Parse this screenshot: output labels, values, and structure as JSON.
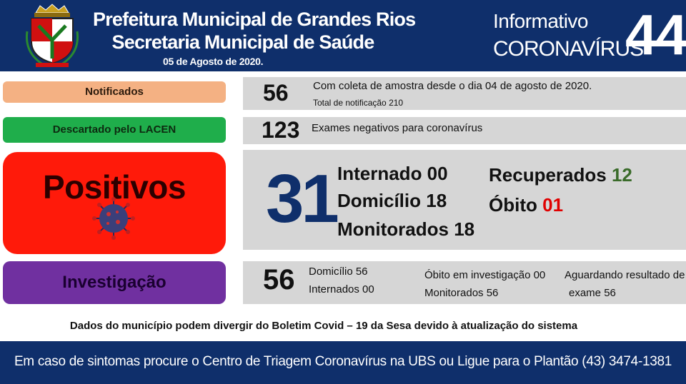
{
  "header": {
    "title_line1": "Prefeitura Municipal de Grandes Rios",
    "title_line2": "Secretaria Municipal de Saúde",
    "date": "05 de Agosto de 2020.",
    "info_label": "Informativo",
    "corona_label": "CORONAVÍRUS",
    "edition_number": "44"
  },
  "notificados": {
    "label": "Notificados",
    "value": "56",
    "text": "Com coleta de amostra desde o dia 04 de agosto de 2020.",
    "subtext": "Total de notificação 210"
  },
  "descartado": {
    "label": "Descartado pelo LACEN",
    "value": "123",
    "text": "Exames negativos para coronavírus"
  },
  "positivos": {
    "label": "Positivos",
    "value": "31",
    "internado": "Internado 00",
    "domicilio": "Domicílio 18",
    "monitorados": "Monitorados 18",
    "recuperados_label": "Recuperados",
    "recuperados_value": "12",
    "obito_label": "Óbito",
    "obito_value": "01"
  },
  "investigacao": {
    "label": "Investigação",
    "value": "56",
    "domicilio": "Domicílio 56",
    "internados": "Internados 00",
    "obito": "Óbito em investigação 00",
    "monitorados": "Monitorados 56",
    "aguardando_line1": "Aguardando resultado de",
    "aguardando_line2": "exame 56"
  },
  "disclaimer": "Dados do município podem divergir do Boletim Covid – 19 da Sesa devido à atualização do sistema",
  "footer": "Em caso de sintomas procure o Centro de Triagem Coronavírus na UBS ou Ligue para o Plantão (43) 3474-1381",
  "colors": {
    "navy": "#0f2f6b",
    "notificados": "#f4b183",
    "descartado": "#1fae4b",
    "positivos": "#ff1a0a",
    "investigacao": "#7030a0",
    "panel": "#d6d6d6",
    "recuperados": "#3a6b2a",
    "obito": "#e00000"
  }
}
